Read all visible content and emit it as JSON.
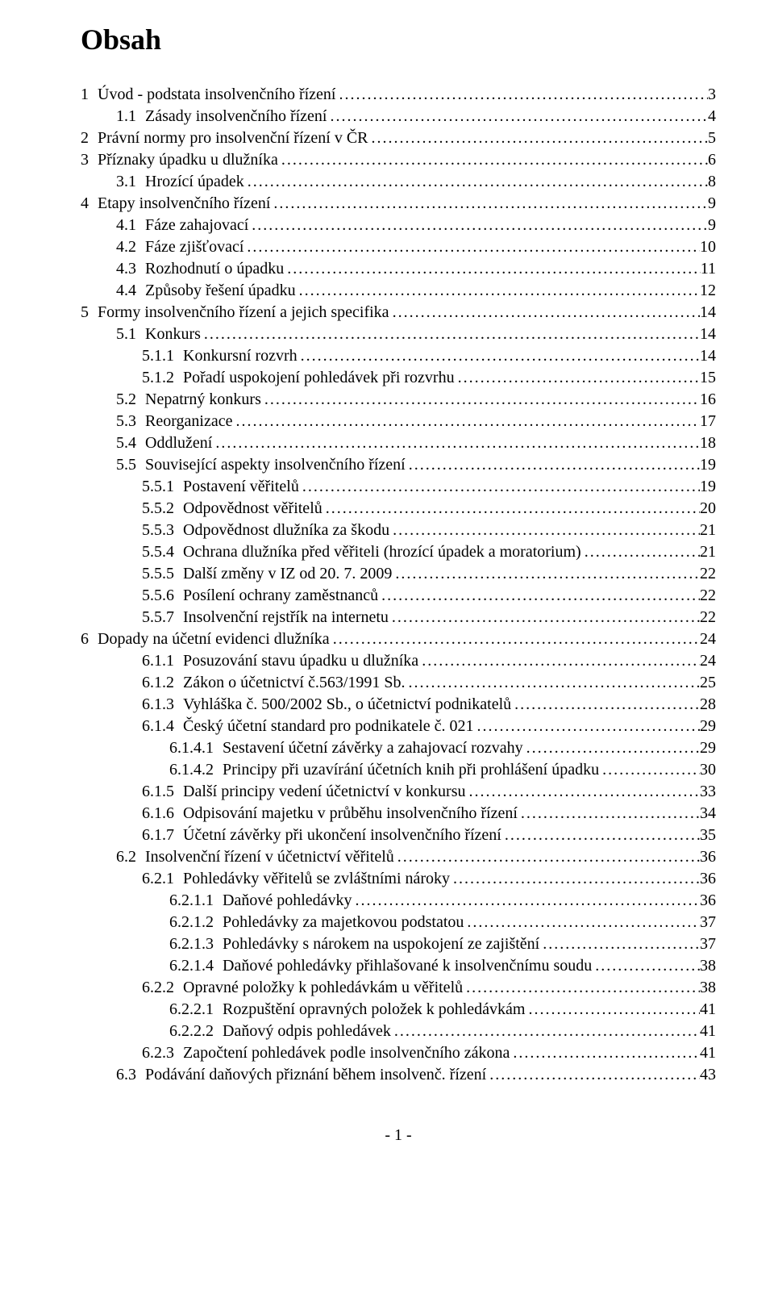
{
  "document": {
    "title": "Obsah",
    "footer_page": "- 1 -",
    "font": {
      "family": "Times New Roman",
      "body_size_pt": 15,
      "title_size_pt": 27,
      "color": "#000000",
      "background_color": "#ffffff"
    },
    "toc_entries": [
      {
        "indent": 0,
        "number": "1",
        "title": "Úvod - podstata insolvenčního řízení",
        "page": "3"
      },
      {
        "indent": 1,
        "number": "1.1",
        "title": "Zásady insolvenčního řízení",
        "page": "4"
      },
      {
        "indent": 0,
        "number": "2",
        "title": "Právní normy pro insolvenční řízení v ČR",
        "page": "5"
      },
      {
        "indent": 0,
        "number": "3",
        "title": "Příznaky úpadku u dlužníka",
        "page": "6"
      },
      {
        "indent": 1,
        "number": "3.1",
        "title": "Hrozící úpadek",
        "page": "8"
      },
      {
        "indent": 0,
        "number": "4",
        "title": "Etapy insolvenčního řízení",
        "page": "9"
      },
      {
        "indent": 1,
        "number": "4.1",
        "title": "Fáze zahajovací",
        "page": "9"
      },
      {
        "indent": 1,
        "number": "4.2",
        "title": "Fáze zjišťovací",
        "page": "10"
      },
      {
        "indent": 1,
        "number": "4.3",
        "title": "Rozhodnutí o úpadku",
        "page": "11"
      },
      {
        "indent": 1,
        "number": "4.4",
        "title": "Způsoby řešení úpadku",
        "page": "12"
      },
      {
        "indent": 0,
        "number": "5",
        "title": "Formy insolvenčního řízení a jejich specifika",
        "page": "14"
      },
      {
        "indent": 1,
        "number": "5.1",
        "title": "Konkurs",
        "page": "14"
      },
      {
        "indent": 2,
        "number": "5.1.1",
        "title": "Konkursní rozvrh",
        "page": "14"
      },
      {
        "indent": 2,
        "number": "5.1.2",
        "title": "Pořadí uspokojení pohledávek při rozvrhu",
        "page": "15"
      },
      {
        "indent": 1,
        "number": "5.2",
        "title": "Nepatrný konkurs",
        "page": "16"
      },
      {
        "indent": 1,
        "number": "5.3",
        "title": "Reorganizace",
        "page": "17"
      },
      {
        "indent": 1,
        "number": "5.4",
        "title": "Oddlužení",
        "page": "18"
      },
      {
        "indent": 1,
        "number": "5.5",
        "title": "Související aspekty insolvenčního řízení",
        "page": "19"
      },
      {
        "indent": 2,
        "number": "5.5.1",
        "title": "Postavení věřitelů",
        "page": "19"
      },
      {
        "indent": 2,
        "number": "5.5.2",
        "title": "Odpovědnost věřitelů",
        "page": "20"
      },
      {
        "indent": 2,
        "number": "5.5.3",
        "title": "Odpovědnost dlužníka za škodu",
        "page": "21"
      },
      {
        "indent": 2,
        "number": "5.5.4",
        "title": "Ochrana dlužníka před věřiteli (hrozící úpadek a moratorium)",
        "page": "21"
      },
      {
        "indent": 2,
        "number": "5.5.5",
        "title": "Další změny v IZ od 20. 7. 2009",
        "page": "22"
      },
      {
        "indent": 2,
        "number": "5.5.6",
        "title": "Posílení ochrany zaměstnanců",
        "page": "22"
      },
      {
        "indent": 2,
        "number": "5.5.7",
        "title": "Insolvenční rejstřík na internetu",
        "page": "22"
      },
      {
        "indent": 0,
        "number": "6",
        "title": "Dopady na účetní evidenci  dlužníka",
        "page": "24"
      },
      {
        "indent": 2,
        "number": "6.1.1",
        "title": "Posuzování stavu úpadku u dlužníka",
        "page": "24"
      },
      {
        "indent": 2,
        "number": "6.1.2",
        "title": "Zákon o účetnictví  č.563/1991 Sb.",
        "page": "25"
      },
      {
        "indent": 2,
        "number": "6.1.3",
        "title": "Vyhláška č. 500/2002 Sb., o účetnictví podnikatelů",
        "page": "28"
      },
      {
        "indent": 2,
        "number": "6.1.4",
        "title": "Český účetní standard pro podnikatele č. 021",
        "page": "29"
      },
      {
        "indent": 3,
        "number": "6.1.4.1",
        "title": "Sestavení účetní závěrky a  zahajovací rozvahy",
        "page": "29"
      },
      {
        "indent": 3,
        "number": "6.1.4.2",
        "title": "Principy při uzavírání účetních knih při prohlášení úpadku",
        "page": "30"
      },
      {
        "indent": 2,
        "number": "6.1.5",
        "title": "Další principy vedení účetnictví v konkursu",
        "page": "33"
      },
      {
        "indent": 2,
        "number": "6.1.6",
        "title": "Odpisování majetku v průběhu insolvenčního řízení",
        "page": "34"
      },
      {
        "indent": 2,
        "number": "6.1.7",
        "title": "Účetní závěrky při ukončení insolvenčního řízení",
        "page": "35"
      },
      {
        "indent": 1,
        "number": "6.2",
        "title": "Insolvenční řízení v účetnictví věřitelů",
        "page": "36"
      },
      {
        "indent": 2,
        "number": "6.2.1",
        "title": "Pohledávky věřitelů se zvláštními nároky",
        "page": "36"
      },
      {
        "indent": 3,
        "number": "6.2.1.1",
        "title": "Daňové pohledávky",
        "page": "36"
      },
      {
        "indent": 3,
        "number": "6.2.1.2",
        "title": "Pohledávky za majetkovou podstatou",
        "page": "37"
      },
      {
        "indent": 3,
        "number": "6.2.1.3",
        "title": "Pohledávky s nárokem na uspokojení ze zajištění",
        "page": "37"
      },
      {
        "indent": 3,
        "number": "6.2.1.4",
        "title": "Daňové pohledávky přihlašované k insolvenčnímu soudu",
        "page": "38"
      },
      {
        "indent": 2,
        "number": "6.2.2",
        "title": "Opravné položky k pohledávkám u věřitelů",
        "page": "38"
      },
      {
        "indent": 3,
        "number": "6.2.2.1",
        "title": "Rozpuštění opravných položek k pohledávkám",
        "page": "41"
      },
      {
        "indent": 3,
        "number": "6.2.2.2",
        "title": "Daňový odpis pohledávek",
        "page": "41"
      },
      {
        "indent": 2,
        "number": "6.2.3",
        "title": "Započtení pohledávek podle insolvenčního zákona",
        "page": "41"
      },
      {
        "indent": 1,
        "number": "6.3",
        "title": "Podávání daňových přiznání během insolvenč. řízení",
        "page": "43"
      }
    ]
  }
}
